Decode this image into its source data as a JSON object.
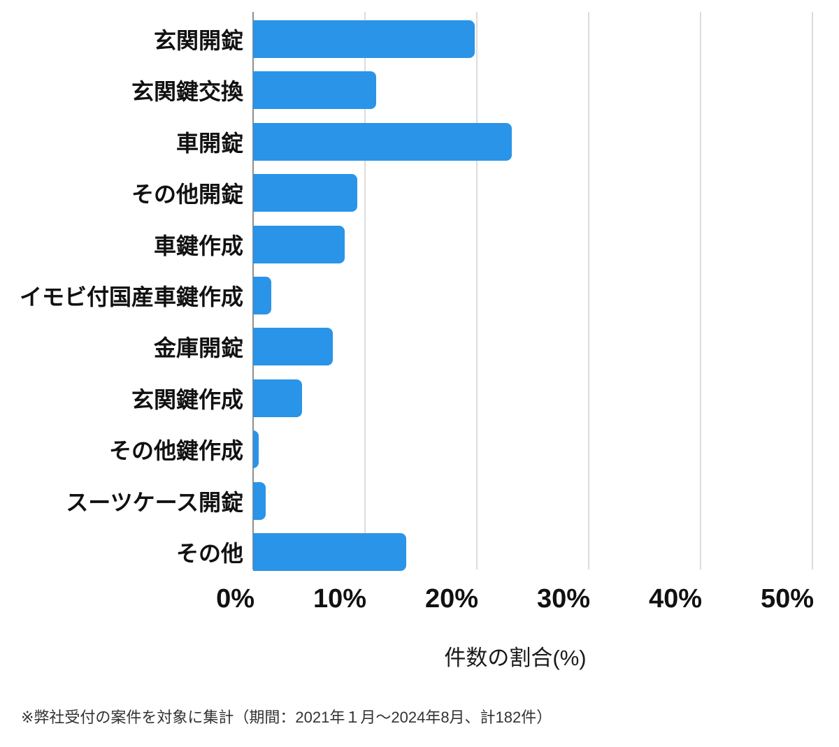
{
  "chart_data": {
    "type": "bar",
    "orientation": "horizontal",
    "title": "",
    "categories": [
      "玄関開錠",
      "玄関鍵交換",
      "車開錠",
      "その他開錠",
      "車鍵作成",
      "イモビ付国産車鍵作成",
      "金庫開錠",
      "玄関鍵作成",
      "その他鍵作成",
      "スーツケース開錠",
      "その他"
    ],
    "values": [
      19.8,
      11.0,
      23.1,
      9.3,
      8.2,
      1.6,
      7.1,
      4.4,
      0.5,
      1.1,
      13.7
    ],
    "xlabel": "件数の割合(%)",
    "ylabel": "",
    "x_ticks": [
      "0%",
      "10%",
      "20%",
      "30%",
      "40%",
      "50%"
    ],
    "x_tick_values": [
      0,
      10,
      20,
      30,
      40,
      50
    ],
    "xlim": [
      0,
      50
    ],
    "grid": true,
    "legend": false,
    "bar_color": "#2A94E8",
    "gridline_color": "#dcdcdc",
    "axis_line_color": "#8f8f8f"
  },
  "footnote": "※弊社受付の案件を対象に集計（期間：2021年１月～2024年8月、計182件）"
}
